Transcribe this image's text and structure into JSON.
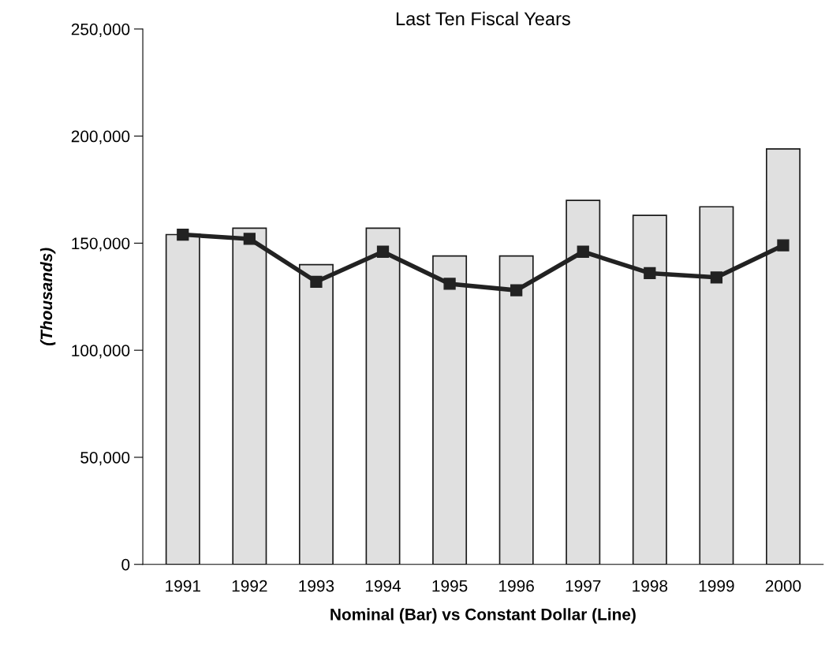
{
  "chart_data": {
    "type": "bar",
    "title": "Last Ten Fiscal Years",
    "xlabel": "Nominal (Bar) vs Constant Dollar (Line)",
    "ylabel": "(Thousands)",
    "categories": [
      "1991",
      "1992",
      "1993",
      "1994",
      "1995",
      "1996",
      "1997",
      "1998",
      "1999",
      "2000"
    ],
    "series": [
      {
        "color": "#e0e0e0",
        "values": [
          154000,
          157000,
          140000,
          157000,
          144000,
          144000,
          170000,
          163000,
          167000,
          194000
        ]
      },
      {
        "type": "line",
        "color": "#222222",
        "marker": "square",
        "line_style": "solid",
        "values": [
          154000,
          152000,
          132000,
          146000,
          131000,
          128000,
          146000,
          136000,
          134000,
          149000
        ]
      }
    ],
    "ylim": [
      0,
      250000
    ],
    "yticks": [
      {
        "value": 0,
        "label": "0"
      },
      {
        "value": 50000,
        "label": "50,000"
      },
      {
        "value": 100000,
        "label": "100,000"
      },
      {
        "value": 150000,
        "label": "150,000"
      },
      {
        "value": 200000,
        "label": "200,000"
      },
      {
        "value": 250000,
        "label": "250,000"
      }
    ],
    "grid": false,
    "legend": false
  }
}
